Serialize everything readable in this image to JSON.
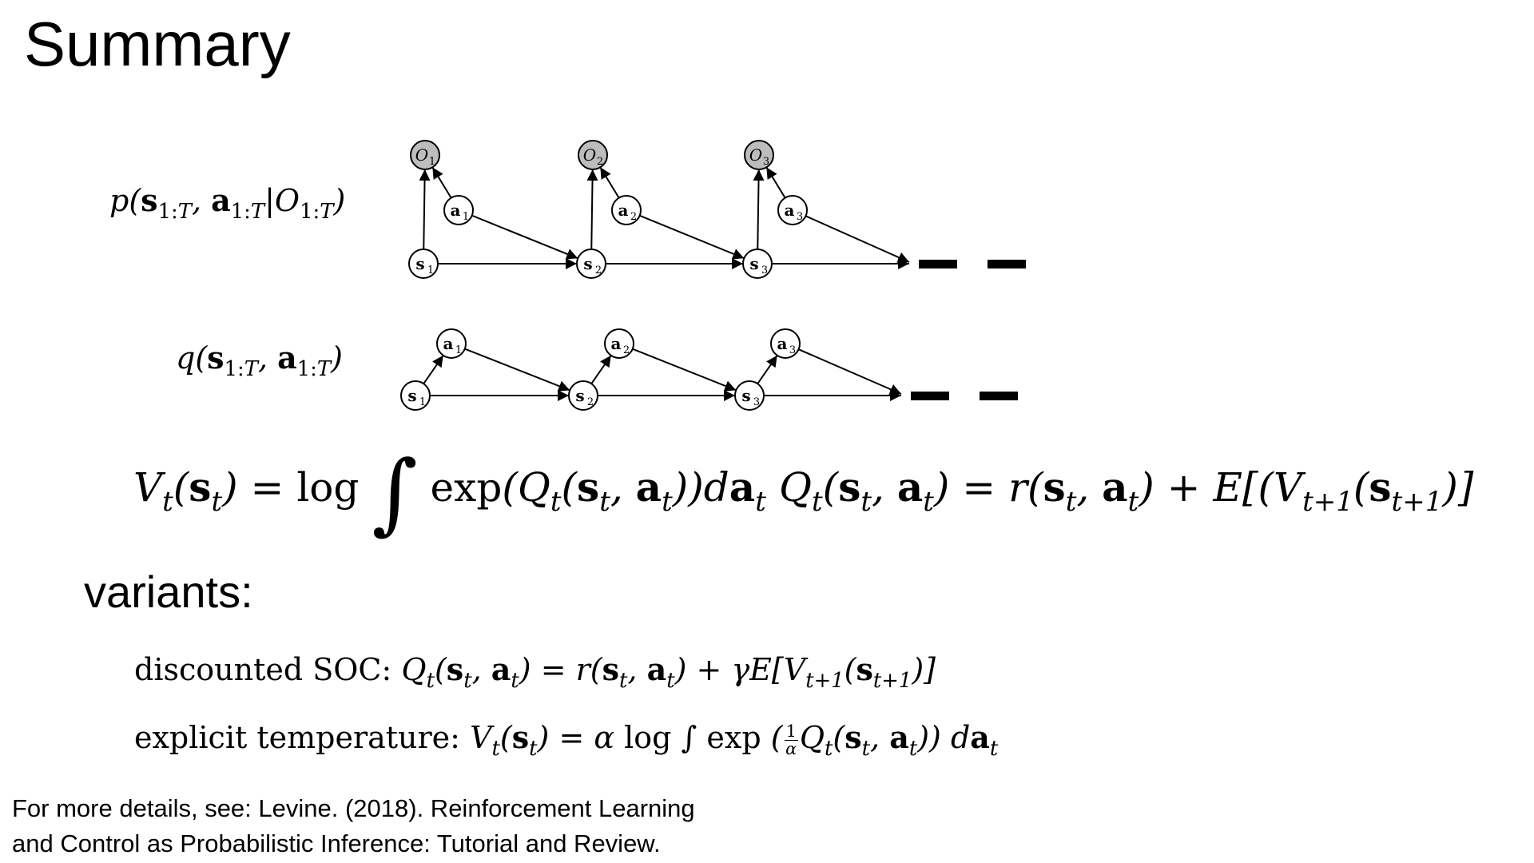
{
  "slide": {
    "title": "Summary",
    "variants_heading": "variants:",
    "footer_line1": "For more details, see: Levine. (2018). Reinforcement Learning",
    "footer_line2": "and Control as Probabilistic Inference: Tutorial and Review."
  },
  "labels": {
    "p_label": "p(s1:T, a1:T|O1:T)",
    "q_label": "q(s1:T, a1:T)"
  },
  "equations": {
    "value": "Vt(st) = log ∫ exp(Qt(st, at))dat",
    "q": "Qt(st, at) = r(st, at) + E[(Vt+1(st+1)]"
  },
  "variants": [
    {
      "name": "discounted SOC:",
      "formula": "Qt(st, at) = r(st, at) + γE[Vt+1(st+1)]"
    },
    {
      "name": "explicit temperature:",
      "formula": "Vt(st) = α log ∫ exp(1/α Qt(st, at)) dat"
    }
  ],
  "graph_p": {
    "states": [
      "s1",
      "s2",
      "s3"
    ],
    "actions": [
      "a1",
      "a2",
      "a3"
    ],
    "optimality": [
      "O1",
      "O2",
      "O3"
    ]
  },
  "graph_q": {
    "states": [
      "s1",
      "s2",
      "s3"
    ],
    "actions": [
      "a1",
      "a2",
      "a3"
    ]
  },
  "colors": {
    "optimality_fill": "#bdbdbd",
    "node_fill": "#ffffff",
    "stroke": "#000000"
  }
}
